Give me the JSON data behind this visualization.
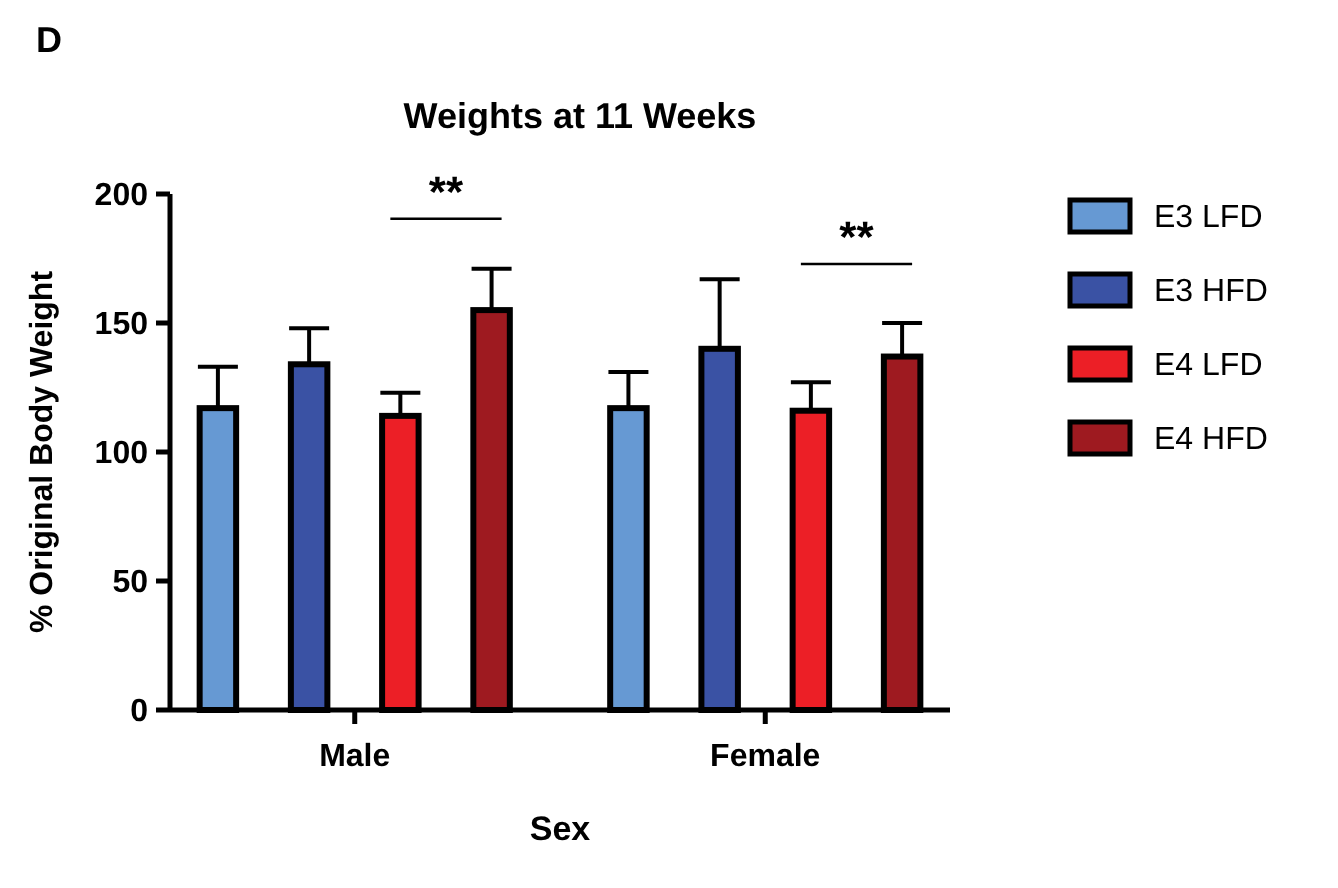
{
  "chart_data": {
    "type": "bar",
    "title": "Weights at 11 Weeks",
    "xlabel": "Sex",
    "ylabel": "% Original Body Weight",
    "categories": [
      "Male",
      "Female"
    ],
    "series": [
      {
        "name": "E3 LFD",
        "color": "#6699d3",
        "values": [
          117,
          117
        ],
        "errors": [
          [
            117,
            133
          ],
          [
            117,
            131
          ]
        ]
      },
      {
        "name": "E3 HFD",
        "color": "#3a52a4",
        "values": [
          134,
          140
        ],
        "errors": [
          [
            134,
            148
          ],
          [
            140,
            167
          ]
        ]
      },
      {
        "name": "E4 LFD",
        "color": "#ec1f26",
        "values": [
          114,
          116
        ],
        "errors": [
          [
            114,
            123
          ],
          [
            116,
            127
          ]
        ]
      },
      {
        "name": "E4 HFD",
        "color": "#9e1a20",
        "values": [
          155,
          137
        ],
        "errors": [
          [
            155,
            171
          ],
          [
            137,
            150
          ]
        ]
      }
    ],
    "ylim": [
      0,
      200
    ],
    "yticks": [
      0,
      50,
      100,
      150,
      200
    ],
    "grid": false,
    "legend": "right",
    "annotations": [
      "D",
      "**",
      "**"
    ]
  }
}
